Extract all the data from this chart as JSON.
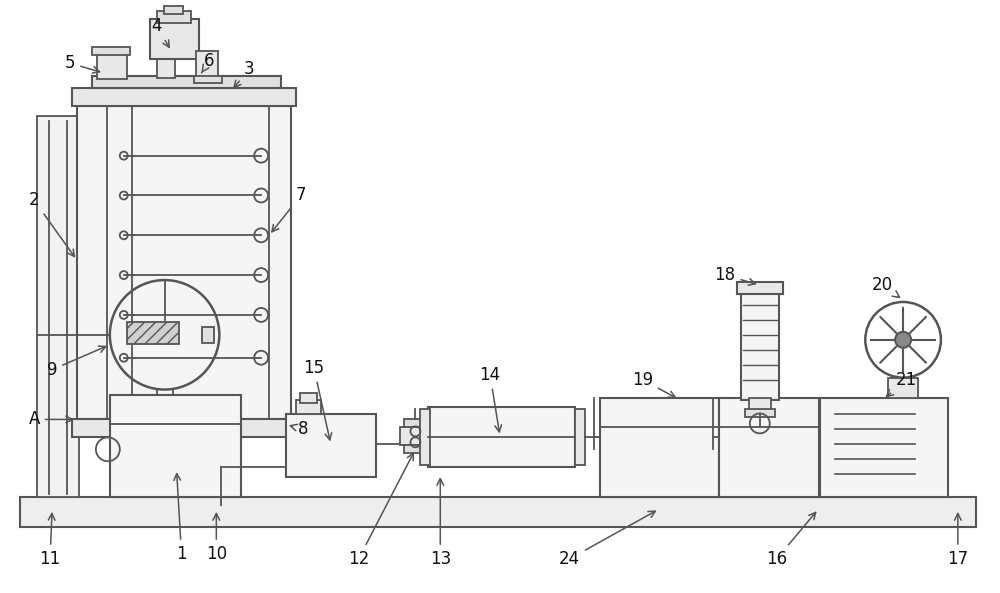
{
  "bg_color": "#ffffff",
  "line_color": "#555555",
  "lw": 1.3,
  "fig_w": 10.0,
  "fig_h": 5.93,
  "dpi": 100
}
